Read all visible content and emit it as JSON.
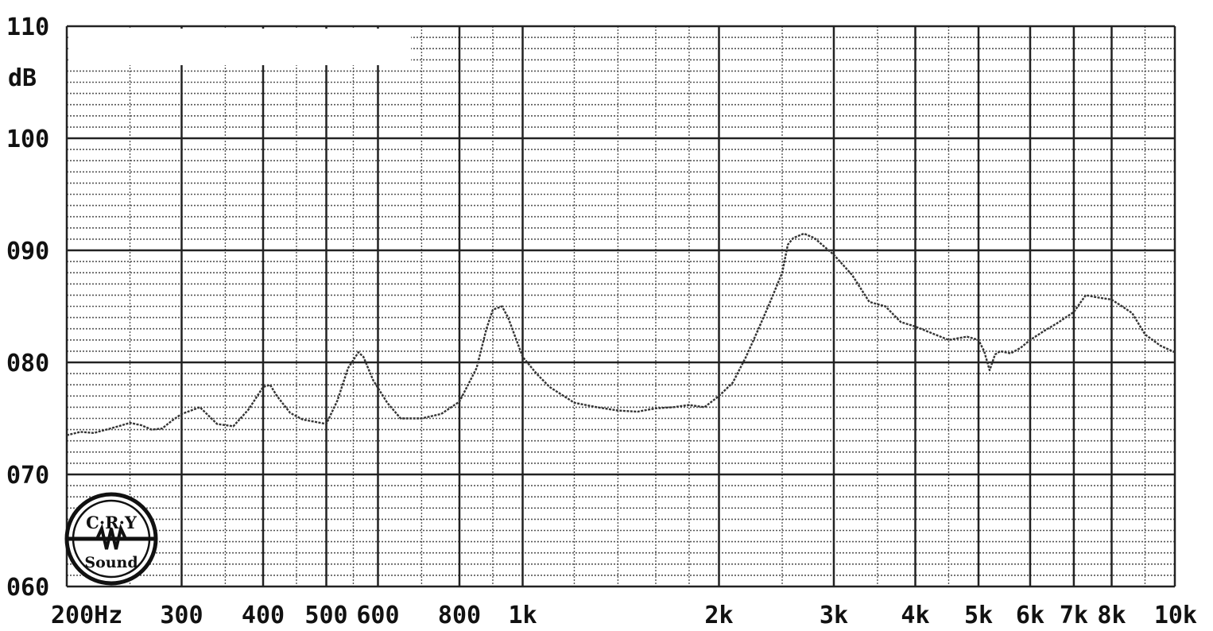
{
  "chart_data": {
    "type": "line",
    "title": "",
    "xlabel": "",
    "ylabel": "dB",
    "x_scale": "log",
    "xlim": [
      200,
      10000
    ],
    "ylim": [
      60,
      110
    ],
    "y_ticks": [
      {
        "value": 110,
        "label": "110"
      },
      {
        "value": 100,
        "label": "100"
      },
      {
        "value": 90,
        "label": "090"
      },
      {
        "value": 80,
        "label": "080"
      },
      {
        "value": 70,
        "label": "070"
      },
      {
        "value": 60,
        "label": "060"
      }
    ],
    "x_ticks": [
      {
        "value": 200,
        "label": "200Hz"
      },
      {
        "value": 300,
        "label": "300"
      },
      {
        "value": 400,
        "label": "400"
      },
      {
        "value": 500,
        "label": "500"
      },
      {
        "value": 600,
        "label": "600"
      },
      {
        "value": 800,
        "label": "800"
      },
      {
        "value": 1000,
        "label": "1k"
      },
      {
        "value": 2000,
        "label": "2k"
      },
      {
        "value": 3000,
        "label": "3k"
      },
      {
        "value": 4000,
        "label": "4k"
      },
      {
        "value": 5000,
        "label": "5k"
      },
      {
        "value": 6000,
        "label": "6k"
      },
      {
        "value": 7000,
        "label": "7k"
      },
      {
        "value": 8000,
        "label": "8k"
      },
      {
        "value": 10000,
        "label": "10k"
      }
    ],
    "grid": true,
    "series": [
      {
        "color": "#333333",
        "x": [
          200,
          210,
          220,
          230,
          240,
          250,
          260,
          270,
          280,
          290,
          300,
          320,
          340,
          360,
          380,
          400,
          410,
          420,
          440,
          460,
          480,
          500,
          520,
          540,
          560,
          570,
          590,
          620,
          650,
          700,
          750,
          800,
          850,
          880,
          900,
          930,
          950,
          1000,
          1050,
          1100,
          1200,
          1300,
          1400,
          1500,
          1600,
          1700,
          1800,
          1900,
          2000,
          2100,
          2200,
          2300,
          2400,
          2500,
          2550,
          2600,
          2700,
          2800,
          3000,
          3200,
          3400,
          3600,
          3800,
          4000,
          4200,
          4500,
          4800,
          5000,
          5100,
          5200,
          5300,
          5400,
          5600,
          5800,
          6000,
          6300,
          6600,
          7000,
          7300,
          7600,
          8000,
          8300,
          8600,
          9000,
          9500,
          10000
        ],
        "y": [
          73.5,
          73.8,
          73.7,
          74.0,
          74.3,
          74.6,
          74.4,
          74.0,
          74.1,
          74.8,
          75.4,
          76.0,
          74.5,
          74.3,
          75.8,
          77.8,
          78.0,
          77.0,
          75.5,
          74.9,
          74.7,
          74.5,
          76.6,
          79.5,
          80.9,
          80.5,
          78.4,
          76.4,
          75.0,
          75.0,
          75.4,
          76.5,
          79.5,
          83.0,
          84.7,
          85.0,
          84.0,
          80.5,
          79.0,
          77.8,
          76.4,
          76.0,
          75.7,
          75.6,
          75.9,
          76.0,
          76.2,
          76.0,
          77.0,
          78.2,
          80.5,
          83.0,
          85.5,
          88.0,
          90.5,
          91.1,
          91.5,
          91.1,
          89.6,
          87.8,
          85.4,
          85.0,
          83.6,
          83.2,
          82.7,
          82.0,
          82.3,
          82.0,
          81.0,
          79.3,
          80.7,
          81.0,
          80.8,
          81.3,
          82.0,
          82.8,
          83.5,
          84.5,
          86.0,
          85.8,
          85.6,
          85.0,
          84.4,
          82.5,
          81.5,
          80.9
        ]
      }
    ]
  },
  "logo": {
    "text_top": "C·R·Y",
    "text_bottom": "Sound",
    "color": "#111111"
  },
  "colors": {
    "background": "#ffffff",
    "major_grid": "#222222",
    "minor_grid": "#555555",
    "curve": "#333333"
  }
}
